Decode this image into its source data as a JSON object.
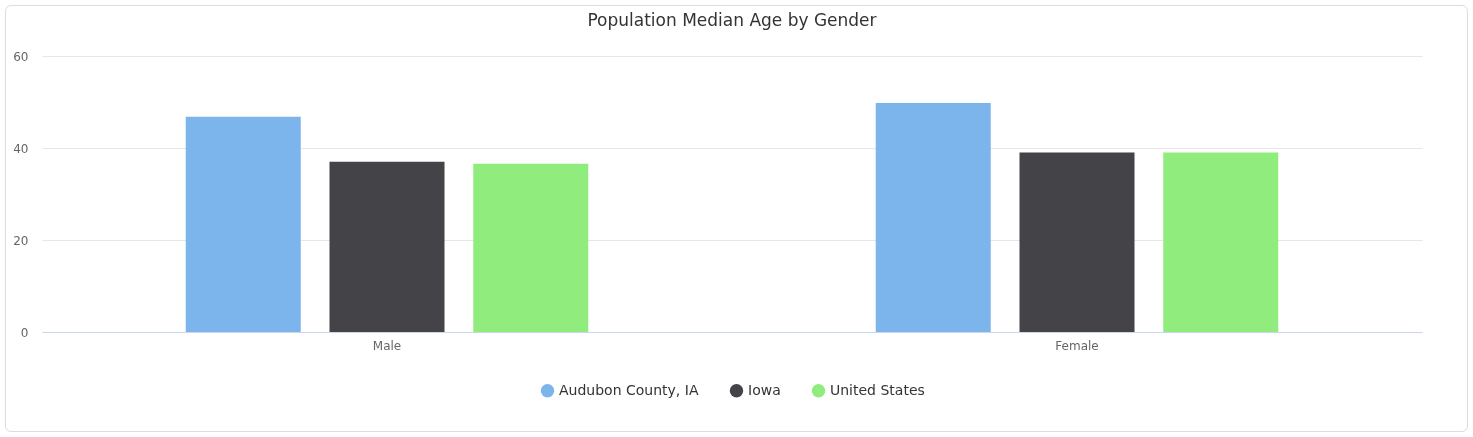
{
  "chart_data": {
    "type": "bar",
    "title": "Population Median Age by Gender",
    "categories": [
      "Male",
      "Female"
    ],
    "series": [
      {
        "name": "Audubon County, IA",
        "color": "#7cb5ec",
        "values": [
          46.8,
          49.8
        ]
      },
      {
        "name": "Iowa",
        "color": "#434348",
        "values": [
          37.0,
          39.0
        ]
      },
      {
        "name": "United States",
        "color": "#90ed7d",
        "values": [
          36.6,
          39.0
        ]
      }
    ],
    "ylim": [
      0,
      60
    ],
    "yticks": [
      0,
      20,
      40,
      60
    ],
    "grid": "y",
    "legend": "bottom"
  }
}
